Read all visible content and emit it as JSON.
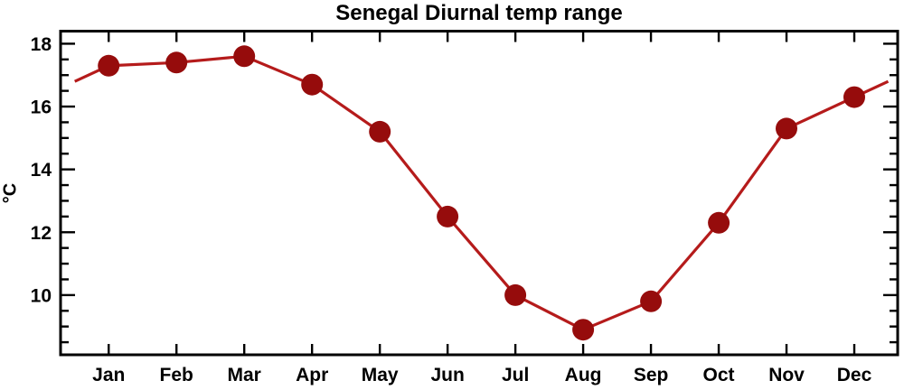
{
  "chart_data": {
    "type": "line",
    "title": "Senegal Diurnal temp range",
    "ylabel": "°C",
    "xlabel": "",
    "categories": [
      "Jan",
      "Feb",
      "Mar",
      "Apr",
      "May",
      "Jun",
      "Jul",
      "Aug",
      "Sep",
      "Oct",
      "Nov",
      "Dec"
    ],
    "values": [
      17.3,
      17.4,
      17.6,
      16.7,
      15.2,
      12.5,
      10.0,
      8.9,
      9.8,
      12.3,
      15.3,
      16.3
    ],
    "edge_points": {
      "note": "line extends half a month past Jan and Dec to the Dec/Jan midpoint value",
      "left_month": 0.5,
      "left_value": 16.8,
      "right_month": 12.5,
      "right_value": 16.8
    },
    "y_major_ticks": [
      10,
      12,
      14,
      16,
      18
    ],
    "y_minor_interval": 0.5,
    "ylim": [
      8.1,
      18.4
    ],
    "xlim_months": [
      0.29,
      12.64
    ],
    "grid": false,
    "legend": "none",
    "marker": "circle",
    "marker_color": "#960c0c",
    "line_color": "#b51b1b",
    "axis_color": "#000000",
    "background_color": "#ffffff"
  }
}
